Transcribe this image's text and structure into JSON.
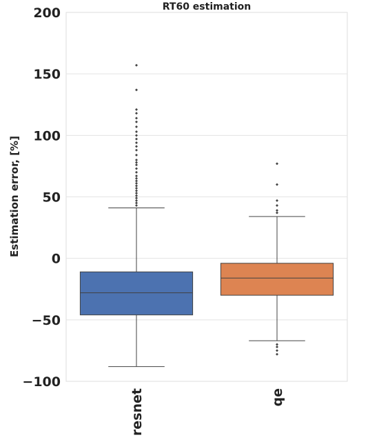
{
  "chart_data": {
    "type": "box",
    "title": "RT60 estimation",
    "xlabel": "",
    "ylabel": "Estimation error, [%]",
    "ylim": [
      -100,
      200
    ],
    "yticks": [
      -100,
      -50,
      0,
      50,
      100,
      150,
      200
    ],
    "grid": true,
    "categories": [
      "resnet",
      "qe"
    ],
    "boxes": [
      {
        "category": "resnet",
        "color": "#4c72b0",
        "whisker_low": -88,
        "q1": -46,
        "median": -28,
        "q3": -11,
        "whisker_high": 41,
        "outliers": [
          43,
          45,
          47,
          49,
          51,
          53,
          55,
          57,
          59,
          61,
          63,
          65,
          67,
          70,
          73,
          76,
          78,
          80,
          84,
          88,
          91,
          94,
          97,
          100,
          103,
          107,
          111,
          114,
          118,
          121,
          137,
          157
        ]
      },
      {
        "category": "qe",
        "color": "#dd8452",
        "whisker_low": -67,
        "q1": -30,
        "median": -16,
        "q3": -4,
        "whisker_high": 34,
        "outliers": [
          -70,
          -72,
          -75,
          -78,
          37,
          39,
          43,
          47,
          60,
          77
        ]
      }
    ]
  }
}
